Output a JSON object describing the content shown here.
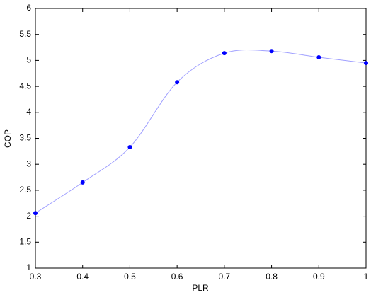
{
  "chart_data": {
    "type": "line",
    "x": [
      0.3,
      0.4,
      0.5,
      0.6,
      0.7,
      0.8,
      0.9,
      1
    ],
    "values": [
      2.06,
      2.65,
      3.33,
      4.58,
      5.14,
      5.18,
      5.06,
      4.95
    ],
    "marker_color": "#0000ff",
    "line_color": "#a0a0ff",
    "interpolation": "spline",
    "xlabel": "PLR",
    "ylabel": "COP",
    "xlim": [
      0.3,
      1
    ],
    "ylim": [
      1,
      6
    ],
    "xticks": [
      0.3,
      0.4,
      0.5,
      0.6,
      0.7,
      0.8,
      0.9,
      1
    ],
    "yticks": [
      1,
      1.5,
      2,
      2.5,
      3,
      3.5,
      4,
      4.5,
      5,
      5.5,
      6
    ]
  }
}
